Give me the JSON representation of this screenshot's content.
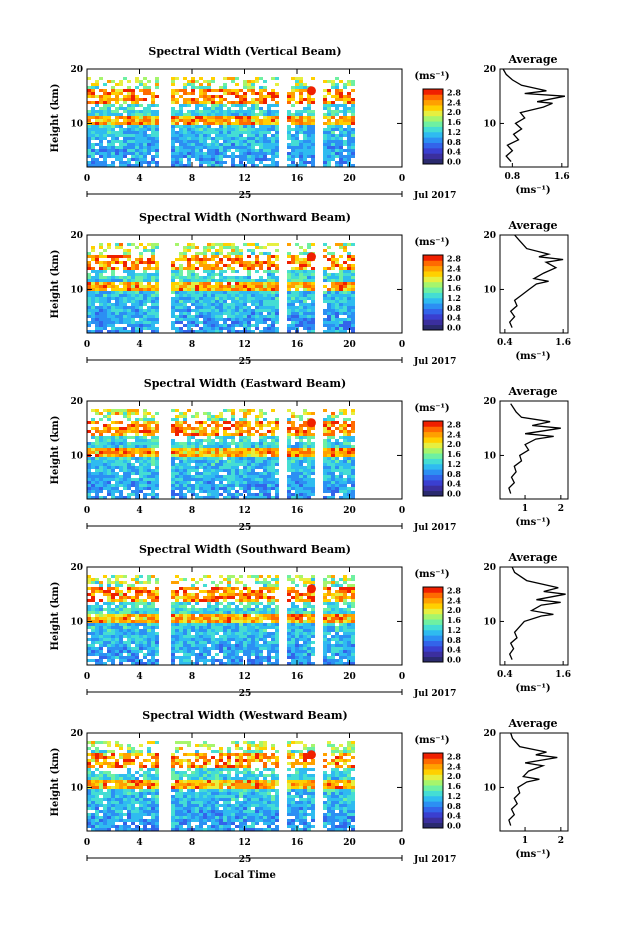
{
  "figure": {
    "footer_label": "Local Time"
  },
  "colorbar": {
    "unit": "(ms⁻¹)",
    "tick_labels": [
      "0.0",
      "0.4",
      "0.8",
      "1.2",
      "1.6",
      "2.0",
      "2.4",
      "2.8"
    ],
    "palette": [
      "#2a2a6e",
      "#3b2f9e",
      "#3a3fd0",
      "#3364ea",
      "#2c8ff3",
      "#2fbbf0",
      "#44ddd4",
      "#6ef0a2",
      "#a6f56c",
      "#e6ef40",
      "#ffd000",
      "#ffa000",
      "#ff6a00",
      "#f02000"
    ]
  },
  "chart_data": [
    {
      "type": "heatmap",
      "title": "Spectral Width (Vertical Beam)",
      "ylabel": "Height (km)",
      "x_ticks": [
        "0",
        "4",
        "8",
        "12",
        "16",
        "20",
        "0"
      ],
      "date_mark": "25",
      "date_label": "Jul 2017",
      "y_ticks": [
        "20",
        "10"
      ],
      "xlim": [
        0,
        24
      ],
      "ylim": [
        2,
        20
      ],
      "data_gaps_hours": [
        [
          5.3,
          6.2
        ],
        [
          14.6,
          15.2
        ],
        [
          17.3,
          17.9
        ],
        [
          20.2,
          24
        ]
      ],
      "average_profile": {
        "title": "Average",
        "xlabel": "(ms⁻¹)",
        "x_ticks": [
          "0.8",
          "1.6"
        ],
        "y_ticks": [
          "20",
          "10"
        ],
        "xlim": [
          0.6,
          1.7
        ],
        "points": [
          [
            0.78,
            3
          ],
          [
            0.7,
            4
          ],
          [
            0.8,
            5
          ],
          [
            0.72,
            6
          ],
          [
            0.9,
            7
          ],
          [
            0.82,
            8
          ],
          [
            0.95,
            9
          ],
          [
            0.85,
            10
          ],
          [
            1.0,
            11
          ],
          [
            0.93,
            12
          ],
          [
            1.3,
            13
          ],
          [
            1.45,
            13.7
          ],
          [
            1.2,
            14
          ],
          [
            1.65,
            15
          ],
          [
            1.0,
            15.5
          ],
          [
            1.35,
            16
          ],
          [
            0.95,
            17
          ],
          [
            0.8,
            18
          ],
          [
            0.7,
            19
          ],
          [
            0.65,
            20
          ]
        ]
      }
    },
    {
      "type": "heatmap",
      "title": "Spectral Width (Northward Beam)",
      "ylabel": "Height (km)",
      "x_ticks": [
        "0",
        "4",
        "8",
        "12",
        "16",
        "20",
        "0"
      ],
      "date_mark": "25",
      "date_label": "Jul 2017",
      "y_ticks": [
        "20",
        "10"
      ],
      "xlim": [
        0,
        24
      ],
      "ylim": [
        2,
        20
      ],
      "data_gaps_hours": [
        [
          5.3,
          6.2
        ],
        [
          14.6,
          15.2
        ],
        [
          17.3,
          17.9
        ],
        [
          20.2,
          24
        ]
      ],
      "average_profile": {
        "title": "Average",
        "xlabel": "(ms⁻¹)",
        "x_ticks": [
          "0.4",
          "1.6"
        ],
        "y_ticks": [
          "20",
          "10"
        ],
        "xlim": [
          0.3,
          1.7
        ],
        "points": [
          [
            0.55,
            3
          ],
          [
            0.5,
            4
          ],
          [
            0.6,
            5
          ],
          [
            0.52,
            6
          ],
          [
            0.65,
            7
          ],
          [
            0.6,
            8
          ],
          [
            0.75,
            9
          ],
          [
            0.9,
            10
          ],
          [
            1.05,
            11
          ],
          [
            1.3,
            11.5
          ],
          [
            1.0,
            12
          ],
          [
            1.2,
            13
          ],
          [
            1.45,
            14
          ],
          [
            1.25,
            15
          ],
          [
            1.6,
            15.5
          ],
          [
            1.1,
            16
          ],
          [
            1.3,
            16.5
          ],
          [
            0.85,
            17.5
          ],
          [
            0.7,
            19
          ],
          [
            0.6,
            20
          ]
        ]
      }
    },
    {
      "type": "heatmap",
      "title": "Spectral Width (Eastward Beam)",
      "ylabel": "Height (km)",
      "x_ticks": [
        "0",
        "4",
        "8",
        "12",
        "16",
        "20",
        "0"
      ],
      "date_mark": "25",
      "date_label": "Jul 2017",
      "y_ticks": [
        "20",
        "10"
      ],
      "xlim": [
        0,
        24
      ],
      "ylim": [
        2,
        20
      ],
      "data_gaps_hours": [
        [
          5.3,
          6.2
        ],
        [
          14.6,
          15.2
        ],
        [
          17.3,
          17.9
        ],
        [
          20.2,
          24
        ]
      ],
      "average_profile": {
        "title": "Average",
        "xlabel": "(ms⁻¹)",
        "x_ticks": [
          "1",
          "2"
        ],
        "y_ticks": [
          "20",
          "10"
        ],
        "xlim": [
          0.3,
          2.2
        ],
        "points": [
          [
            0.6,
            3
          ],
          [
            0.55,
            4
          ],
          [
            0.7,
            5
          ],
          [
            0.62,
            6
          ],
          [
            0.75,
            7
          ],
          [
            0.7,
            8
          ],
          [
            0.9,
            9
          ],
          [
            0.85,
            10
          ],
          [
            1.1,
            11
          ],
          [
            1.0,
            12
          ],
          [
            1.3,
            13
          ],
          [
            1.8,
            13.5
          ],
          [
            1.0,
            14
          ],
          [
            2.0,
            15
          ],
          [
            1.2,
            15.5
          ],
          [
            1.7,
            16.2
          ],
          [
            0.9,
            17
          ],
          [
            0.75,
            18
          ],
          [
            0.6,
            19.5
          ]
        ]
      }
    },
    {
      "type": "heatmap",
      "title": "Spectral Width (Southward Beam)",
      "ylabel": "Height (km)",
      "x_ticks": [
        "0",
        "4",
        "8",
        "12",
        "16",
        "20",
        "0"
      ],
      "date_mark": "25",
      "date_label": "Jul 2017",
      "y_ticks": [
        "20",
        "10"
      ],
      "xlim": [
        0,
        24
      ],
      "ylim": [
        2,
        20
      ],
      "data_gaps_hours": [
        [
          5.3,
          6.2
        ],
        [
          14.6,
          15.2
        ],
        [
          17.3,
          17.9
        ],
        [
          20.2,
          24
        ]
      ],
      "average_profile": {
        "title": "Average",
        "xlabel": "(ms⁻¹)",
        "x_ticks": [
          "0.4",
          "1.6"
        ],
        "y_ticks": [
          "20",
          "10"
        ],
        "xlim": [
          0.3,
          1.7
        ],
        "points": [
          [
            0.55,
            3
          ],
          [
            0.5,
            4
          ],
          [
            0.58,
            5
          ],
          [
            0.52,
            6
          ],
          [
            0.65,
            7
          ],
          [
            0.6,
            8
          ],
          [
            0.7,
            9
          ],
          [
            0.8,
            10
          ],
          [
            1.15,
            11
          ],
          [
            1.4,
            11.3
          ],
          [
            0.95,
            12
          ],
          [
            1.15,
            13
          ],
          [
            1.55,
            13.5
          ],
          [
            1.05,
            14
          ],
          [
            1.65,
            15
          ],
          [
            1.2,
            15.5
          ],
          [
            1.5,
            16.2
          ],
          [
            0.85,
            17.5
          ],
          [
            0.6,
            19
          ],
          [
            0.55,
            20
          ]
        ]
      }
    },
    {
      "type": "heatmap",
      "title": "Spectral Width (Westward Beam)",
      "ylabel": "Height (km)",
      "x_ticks": [
        "0",
        "4",
        "8",
        "12",
        "16",
        "20",
        "0"
      ],
      "date_mark": "25",
      "date_label": "Jul 2017",
      "y_ticks": [
        "20",
        "10"
      ],
      "xlim": [
        0,
        24
      ],
      "ylim": [
        2,
        20
      ],
      "data_gaps_hours": [
        [
          5.3,
          6.2
        ],
        [
          14.6,
          15.2
        ],
        [
          17.3,
          17.9
        ],
        [
          20.2,
          24
        ]
      ],
      "average_profile": {
        "title": "Average",
        "xlabel": "(ms⁻¹)",
        "x_ticks": [
          "1",
          "2"
        ],
        "y_ticks": [
          "20",
          "10"
        ],
        "xlim": [
          0.3,
          2.2
        ],
        "points": [
          [
            0.6,
            3
          ],
          [
            0.55,
            4
          ],
          [
            0.7,
            5
          ],
          [
            0.62,
            6
          ],
          [
            0.78,
            7
          ],
          [
            0.7,
            8
          ],
          [
            0.85,
            9
          ],
          [
            0.8,
            10
          ],
          [
            1.05,
            11
          ],
          [
            1.4,
            11.5
          ],
          [
            0.95,
            12
          ],
          [
            1.1,
            13
          ],
          [
            1.5,
            14
          ],
          [
            1.0,
            14.5
          ],
          [
            1.9,
            15.5
          ],
          [
            1.3,
            16
          ],
          [
            1.6,
            16.5
          ],
          [
            0.85,
            17.5
          ],
          [
            0.65,
            19
          ],
          [
            0.6,
            20
          ]
        ]
      }
    }
  ]
}
